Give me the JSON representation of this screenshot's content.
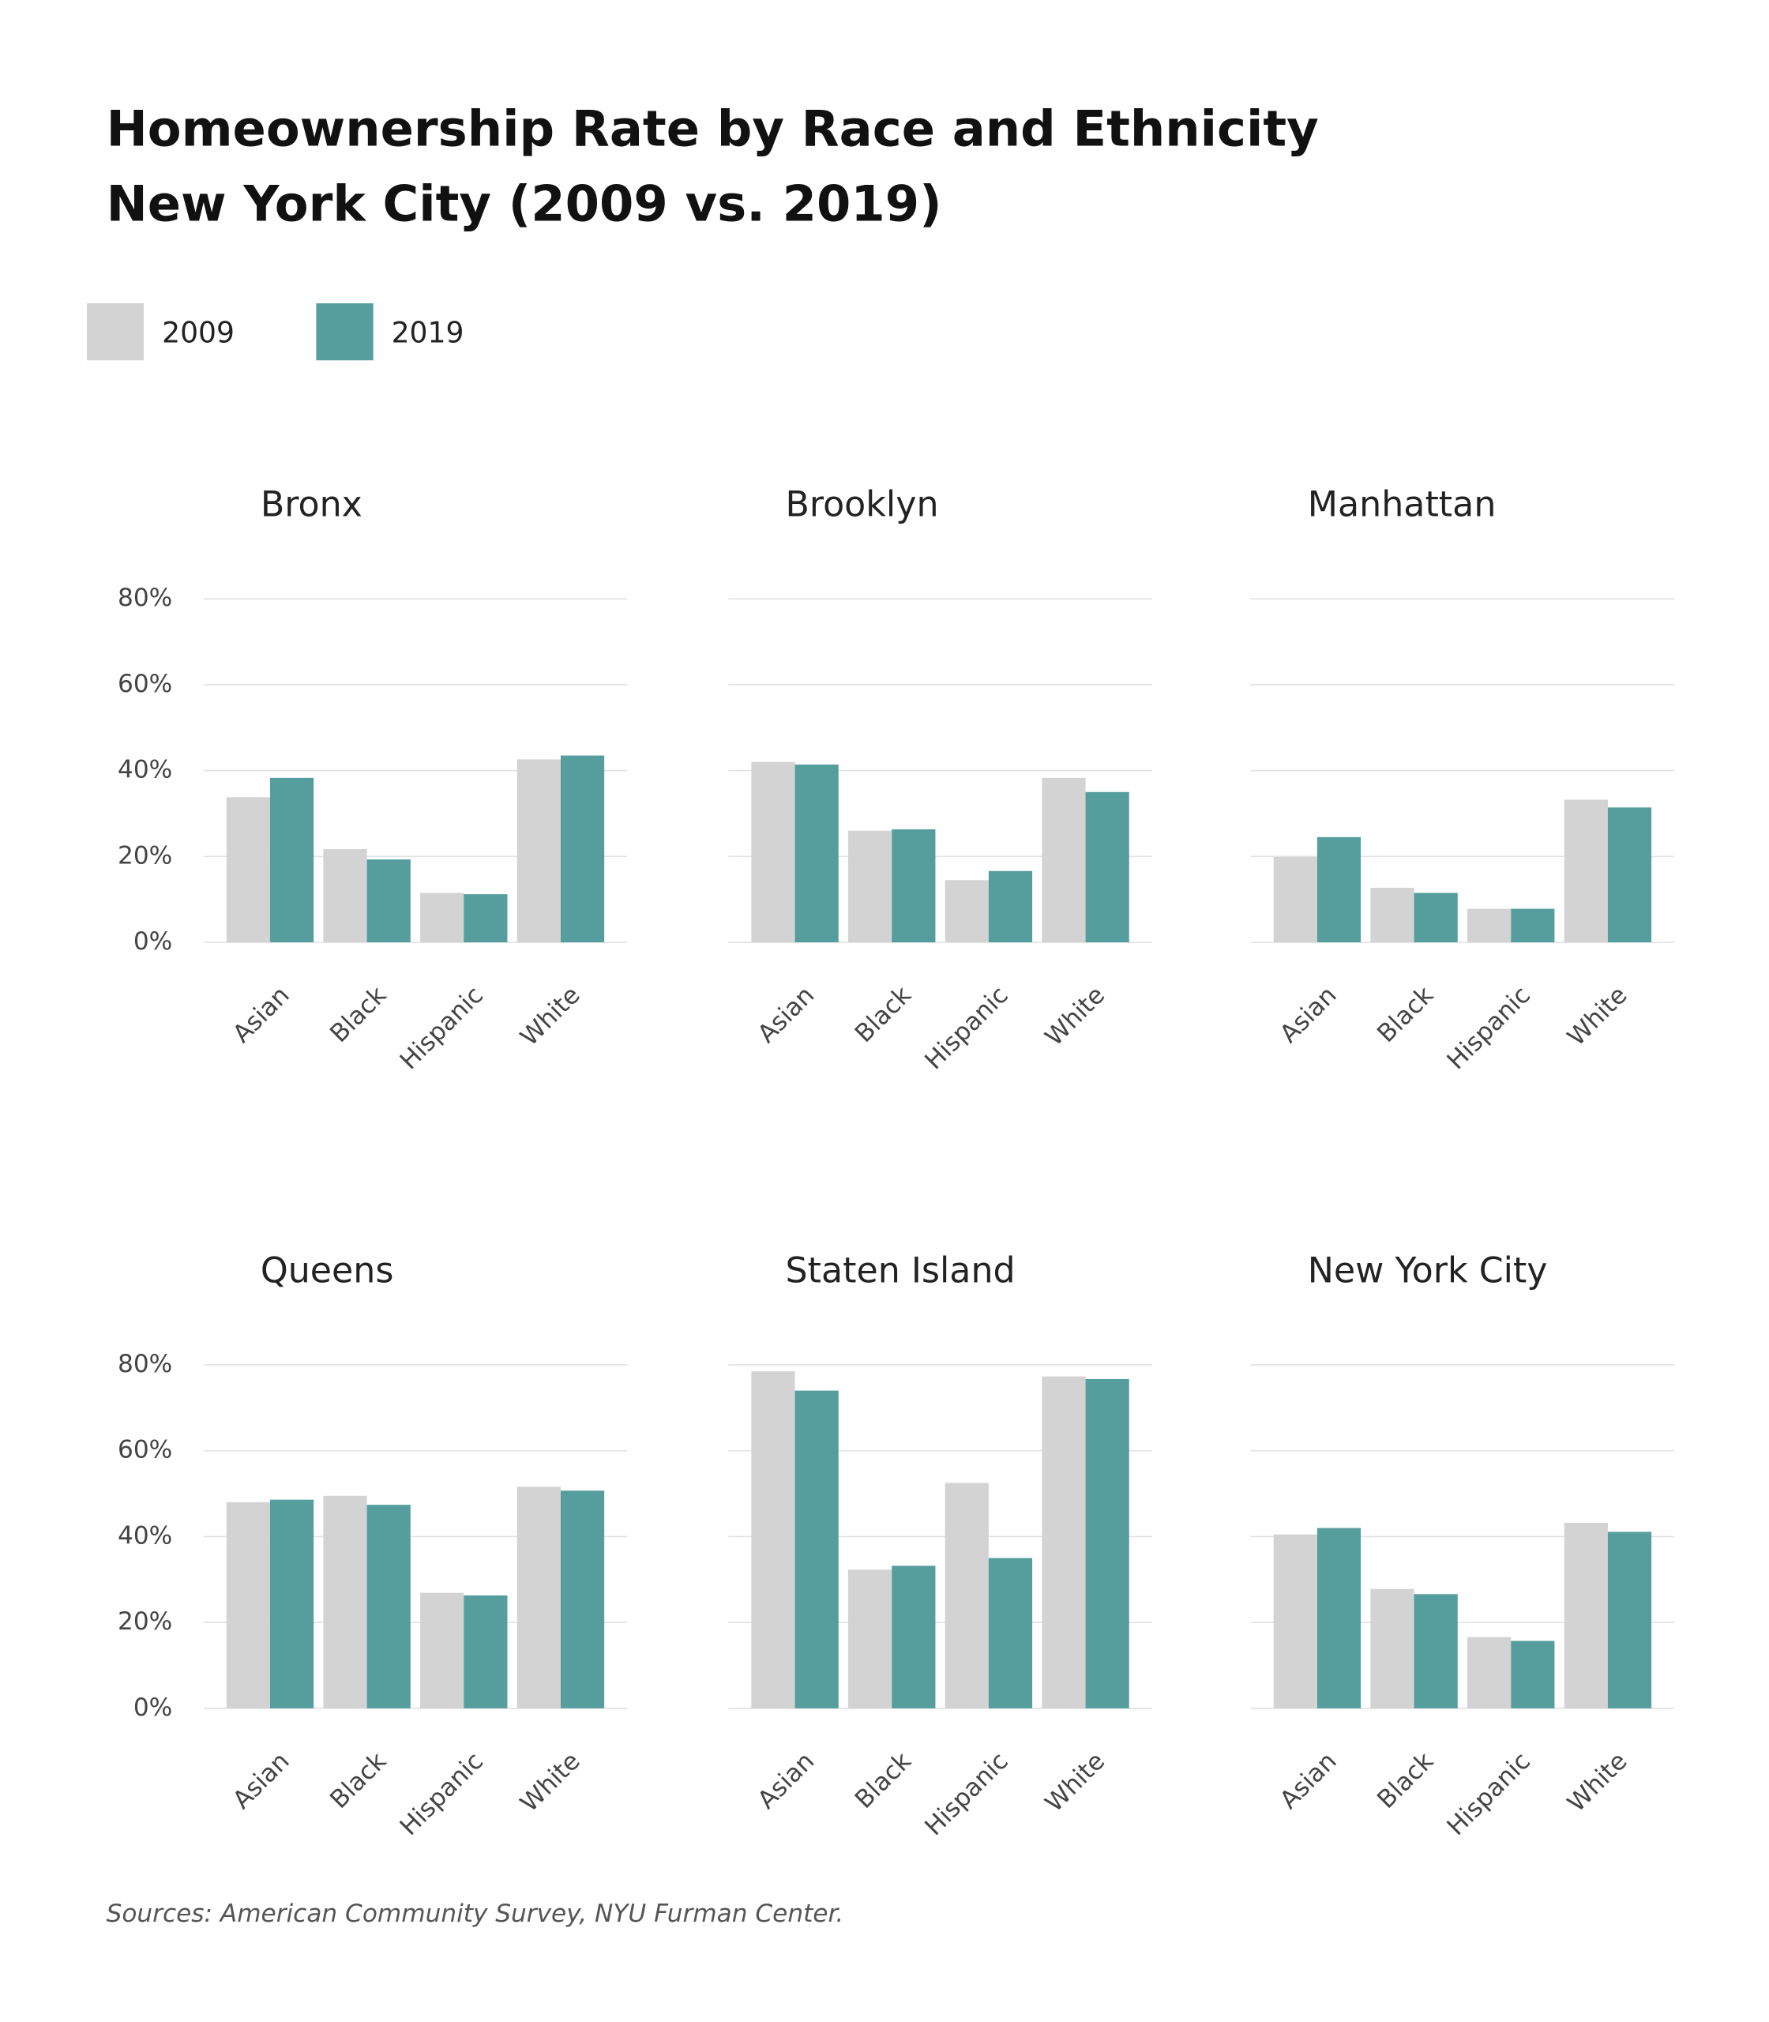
{
  "title": [
    "Homeownership Rate by Race and Ethnicity",
    "New York City (2009 vs. 2019)"
  ],
  "legend": [
    {
      "name": "2009",
      "color": "#d3d3d3"
    },
    {
      "name": "2019",
      "color": "#569d9e"
    }
  ],
  "source": "Sources: American Community Survey, NYU Furman Center.",
  "chart_data": [
    {
      "type": "bar",
      "title": "Bronx",
      "categories": [
        "Asian",
        "Black",
        "Hispanic",
        "White"
      ],
      "series": [
        {
          "values": [
            33.8,
            21.7,
            11.5,
            42.6
          ]
        },
        {
          "values": [
            38.3,
            19.3,
            11.2,
            43.5
          ]
        }
      ],
      "ylim": [
        0,
        80
      ],
      "yticks": [
        {
          "value": 0,
          "label": "0%"
        },
        {
          "value": 20,
          "label": "20%"
        },
        {
          "value": 40,
          "label": "40%"
        },
        {
          "value": 60,
          "label": "60%"
        },
        {
          "value": 80,
          "label": "80%"
        }
      ],
      "grid": true
    },
    {
      "type": "bar",
      "title": "Brooklyn",
      "categories": [
        "Asian",
        "Black",
        "Hispanic",
        "White"
      ],
      "series": [
        {
          "values": [
            42,
            26,
            14.5,
            38.3
          ]
        },
        {
          "values": [
            41.4,
            26.3,
            16.6,
            35
          ]
        }
      ],
      "ylim": [
        0,
        80
      ],
      "yticks": [
        0,
        20,
        40,
        60,
        80
      ],
      "grid": true
    },
    {
      "type": "bar",
      "title": "Manhattan",
      "categories": [
        "Asian",
        "Black",
        "Hispanic",
        "White"
      ],
      "series": [
        {
          "values": [
            19.9,
            12.7,
            7.8,
            33.2
          ]
        },
        {
          "values": [
            24.5,
            11.5,
            7.8,
            31.4
          ]
        }
      ],
      "ylim": [
        0,
        80
      ],
      "yticks": [
        0,
        20,
        40,
        60,
        80
      ],
      "grid": true
    },
    {
      "type": "bar",
      "title": "Queens",
      "categories": [
        "Asian",
        "Black",
        "Hispanic",
        "White"
      ],
      "series": [
        {
          "values": [
            48,
            49.5,
            26.9,
            51.6
          ]
        },
        {
          "values": [
            48.6,
            47.4,
            26.3,
            50.7
          ]
        }
      ],
      "ylim": [
        0,
        80
      ],
      "yticks": [
        {
          "value": 0,
          "label": "0%"
        },
        {
          "value": 20,
          "label": "20%"
        },
        {
          "value": 40,
          "label": "40%"
        },
        {
          "value": 60,
          "label": "60%"
        },
        {
          "value": 80,
          "label": "80%"
        }
      ],
      "grid": true
    },
    {
      "type": "bar",
      "title": "Staten Island",
      "categories": [
        "Asian",
        "Black",
        "Hispanic",
        "White"
      ],
      "series": [
        {
          "values": [
            78.5,
            32.3,
            52.5,
            77.3
          ]
        },
        {
          "values": [
            74,
            33.2,
            35,
            76.7
          ]
        }
      ],
      "ylim": [
        0,
        80
      ],
      "yticks": [
        0,
        20,
        40,
        60,
        80
      ],
      "grid": true
    },
    {
      "type": "bar",
      "title": "New York City",
      "categories": [
        "Asian",
        "Black",
        "Hispanic",
        "White"
      ],
      "series": [
        {
          "values": [
            40.5,
            27.8,
            16.6,
            43.2
          ]
        },
        {
          "values": [
            42,
            26.6,
            15.7,
            41.1
          ]
        }
      ],
      "ylim": [
        0,
        80
      ],
      "yticks": [
        0,
        20,
        40,
        60,
        80
      ],
      "grid": true
    }
  ]
}
